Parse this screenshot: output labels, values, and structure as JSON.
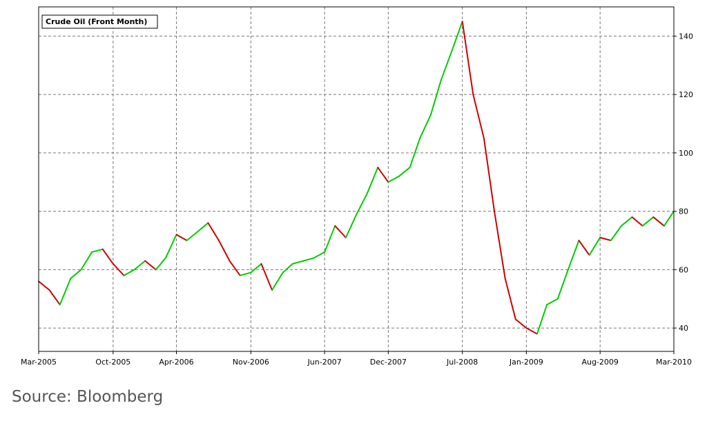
{
  "chart_data": {
    "type": "line",
    "title": "",
    "xlabel": "",
    "ylabel": "",
    "legend": {
      "label": "Crude Oil (Front Month)",
      "placement": "top-left"
    },
    "x_ticks": [
      "Mar-2005",
      "Oct-2005",
      "Apr-2006",
      "Nov-2006",
      "Jun-2007",
      "Dec-2007",
      "Jul-2008",
      "Jan-2009",
      "Aug-2009",
      "Mar-2010"
    ],
    "y_ticks": [
      40,
      60,
      80,
      100,
      120,
      140
    ],
    "ylim": [
      32,
      150
    ],
    "xlim": [
      "2005-03",
      "2010-03"
    ],
    "y_axis_side": "right",
    "grid": true,
    "colors": {
      "up": "#00cc00",
      "down": "#cc0000",
      "grid": "#777777"
    },
    "series": [
      {
        "x": [
          "2005-03-01",
          "2005-04-01",
          "2005-05-01",
          "2005-06-01",
          "2005-07-01",
          "2005-08-01",
          "2005-09-01",
          "2005-10-01",
          "2005-11-01",
          "2005-12-01",
          "2006-01-01",
          "2006-02-01",
          "2006-03-01",
          "2006-04-01",
          "2006-05-01",
          "2006-06-01",
          "2006-07-01",
          "2006-08-01",
          "2006-09-01",
          "2006-10-01",
          "2006-11-01",
          "2006-12-01",
          "2007-01-01",
          "2007-02-01",
          "2007-03-01",
          "2007-04-01",
          "2007-05-01",
          "2007-06-01",
          "2007-07-01",
          "2007-08-01",
          "2007-09-01",
          "2007-10-01",
          "2007-11-01",
          "2007-12-01",
          "2008-01-01",
          "2008-02-01",
          "2008-03-01",
          "2008-04-01",
          "2008-05-01",
          "2008-06-01",
          "2008-07-01",
          "2008-08-01",
          "2008-09-01",
          "2008-10-01",
          "2008-11-01",
          "2008-12-01",
          "2009-01-01",
          "2009-02-01",
          "2009-03-01",
          "2009-04-01",
          "2009-05-01",
          "2009-06-01",
          "2009-07-01",
          "2009-08-01",
          "2009-09-01",
          "2009-10-01",
          "2009-11-01",
          "2009-12-01",
          "2010-01-01",
          "2010-02-01",
          "2010-03-01"
        ],
        "values": [
          56,
          53,
          48,
          57,
          60,
          66,
          67,
          62,
          58,
          60,
          63,
          60,
          64,
          72,
          70,
          73,
          76,
          70,
          63,
          58,
          59,
          62,
          53,
          59,
          62,
          63,
          64,
          66,
          75,
          71,
          79,
          86,
          95,
          90,
          92,
          95,
          105,
          113,
          125,
          135,
          145,
          120,
          105,
          80,
          57,
          43,
          40,
          38,
          48,
          50,
          60,
          70,
          65,
          71,
          70,
          75,
          78,
          75,
          78,
          75,
          80
        ]
      }
    ]
  },
  "source_text": "Source: Bloomberg"
}
